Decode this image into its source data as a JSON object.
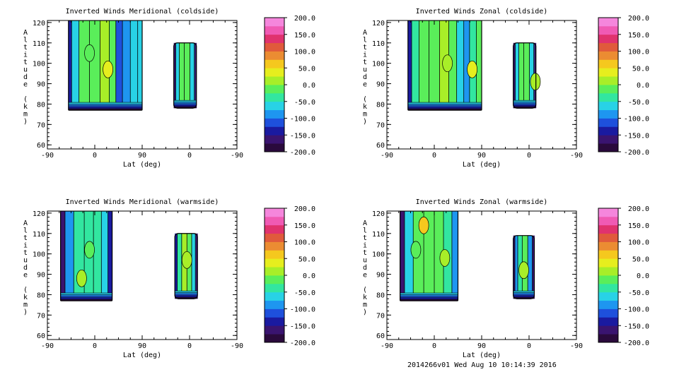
{
  "palette": [
    "#2a0a3c",
    "#3a1470",
    "#1a1aa0",
    "#1e50dc",
    "#1e96f0",
    "#28d2e6",
    "#32e6a0",
    "#5aee5a",
    "#a8ee28",
    "#e6ee1e",
    "#f5c81e",
    "#eb8c32",
    "#e05a3c",
    "#e0326e",
    "#f05ab4",
    "#f586dc"
  ],
  "colorbar_ticks": [
    "200.0",
    "150.0",
    "100.0",
    "50.0",
    "0.0",
    "-50.0",
    "-100.0",
    "-150.0",
    "-200.0"
  ],
  "footer": "2014266v01 Wed Aug 10 10:14:39 2016",
  "chart_data": [
    {
      "type": "heatmap",
      "title": "Inverted Winds Meridional (coldside)",
      "xlabel": "Lat (deg)",
      "ylabel": "Altitude (km)",
      "xticks": [
        "-90",
        "0",
        "90",
        "0",
        "-90"
      ],
      "yticks": [
        "60",
        "70",
        "80",
        "90",
        "100",
        "110",
        "120"
      ],
      "ylim": [
        58,
        121
      ],
      "clim": [
        -200,
        200
      ],
      "blocks": [
        {
          "name": "upleg-panel",
          "x0": -50,
          "x1": 90,
          "ybot": 77,
          "ytop": 121,
          "cols": [
            {
              "x": -48,
              "v": -150
            },
            {
              "x": -40,
              "v": -60
            },
            {
              "x": -20,
              "v": -20
            },
            {
              "x": 0,
              "v": -10
            },
            {
              "x": 20,
              "v": 5
            },
            {
              "x": 35,
              "v": -20
            },
            {
              "x": 45,
              "v": -120
            },
            {
              "x": 60,
              "v": -90
            },
            {
              "x": 75,
              "v": -70
            },
            {
              "x": 88,
              "v": -60
            }
          ],
          "spots": [
            {
              "x": 25,
              "y": 97,
              "v": 30
            },
            {
              "x": -10,
              "y": 105,
              "v": -5
            }
          ]
        },
        {
          "name": "downleg-panel",
          "x0": -13,
          "x1": 30,
          "ybot": 78,
          "ytop": 110,
          "cols": [
            {
              "x": -12,
              "v": -160
            },
            {
              "x": -6,
              "v": -60
            },
            {
              "x": 5,
              "v": -15
            },
            {
              "x": 15,
              "v": -25
            },
            {
              "x": 24,
              "v": -70
            },
            {
              "x": 29,
              "v": -160
            }
          ],
          "spots": []
        }
      ]
    },
    {
      "type": "heatmap",
      "title": "Inverted Winds Zonal (coldside)",
      "xlabel": "Lat (deg)",
      "ylabel": "Altitude (km)",
      "xticks": [
        "-90",
        "0",
        "90",
        "0",
        "-90"
      ],
      "yticks": [
        "60",
        "70",
        "80",
        "90",
        "100",
        "110",
        "120"
      ],
      "ylim": [
        58,
        121
      ],
      "clim": [
        -200,
        200
      ],
      "blocks": [
        {
          "name": "upleg-panel",
          "x0": -50,
          "x1": 90,
          "ybot": 77,
          "ytop": 121,
          "cols": [
            {
              "x": -48,
              "v": -150
            },
            {
              "x": -38,
              "v": -50
            },
            {
              "x": -20,
              "v": -10
            },
            {
              "x": 0,
              "v": -5
            },
            {
              "x": 20,
              "v": 0
            },
            {
              "x": 35,
              "v": -10
            },
            {
              "x": 50,
              "v": -70
            },
            {
              "x": 62,
              "v": -80
            },
            {
              "x": 72,
              "v": -30
            },
            {
              "x": 88,
              "v": -20
            }
          ],
          "spots": [
            {
              "x": 25,
              "y": 100,
              "v": 15
            },
            {
              "x": 72,
              "y": 97,
              "v": 25
            }
          ]
        },
        {
          "name": "downleg-panel",
          "x0": -13,
          "x1": 30,
          "ybot": 78,
          "ytop": 110,
          "cols": [
            {
              "x": -12,
              "v": -160
            },
            {
              "x": -6,
              "v": -60
            },
            {
              "x": 5,
              "v": -20
            },
            {
              "x": 15,
              "v": -10
            },
            {
              "x": 24,
              "v": -60
            },
            {
              "x": 29,
              "v": -160
            }
          ],
          "spots": [
            {
              "x": -12,
              "y": 91,
              "v": 10
            }
          ]
        }
      ]
    },
    {
      "type": "heatmap",
      "title": "Inverted Winds Meridional (warmside)",
      "xlabel": "Lat (deg)",
      "ylabel": "Altitude (km)",
      "xticks": [
        "-90",
        "0",
        "90",
        "0",
        "-90"
      ],
      "yticks": [
        "60",
        "70",
        "80",
        "90",
        "100",
        "110",
        "120"
      ],
      "ylim": [
        58,
        121
      ],
      "clim": [
        -200,
        200
      ],
      "blocks": [
        {
          "name": "upleg-panel",
          "x0": -65,
          "x1": 33,
          "ybot": 77,
          "ytop": 121,
          "cols": [
            {
              "x": -63,
              "v": -160
            },
            {
              "x": -50,
              "v": -90
            },
            {
              "x": -30,
              "v": -40
            },
            {
              "x": -10,
              "v": -35
            },
            {
              "x": 5,
              "v": -40
            },
            {
              "x": 20,
              "v": -70
            },
            {
              "x": 30,
              "v": -130
            }
          ],
          "spots": [
            {
              "x": -10,
              "y": 102,
              "v": -5
            },
            {
              "x": -25,
              "y": 88,
              "v": 15
            }
          ]
        },
        {
          "name": "downleg-panel",
          "x0": -15,
          "x1": 28,
          "ybot": 78,
          "ytop": 110,
          "cols": [
            {
              "x": -14,
              "v": -160
            },
            {
              "x": -8,
              "v": -60
            },
            {
              "x": 0,
              "v": -10
            },
            {
              "x": 10,
              "v": 0
            },
            {
              "x": 20,
              "v": -40
            },
            {
              "x": 27,
              "v": -150
            }
          ],
          "spots": [
            {
              "x": 5,
              "y": 97,
              "v": 20
            }
          ]
        }
      ]
    },
    {
      "type": "heatmap",
      "title": "Inverted Winds Zonal (warmside)",
      "xlabel": "Lat (deg)",
      "ylabel": "Altitude (km)",
      "xticks": [
        "-90",
        "0",
        "90",
        "0",
        "-90"
      ],
      "yticks": [
        "60",
        "70",
        "80",
        "90",
        "100",
        "110",
        "120"
      ],
      "ylim": [
        58,
        121
      ],
      "clim": [
        -200,
        200
      ],
      "blocks": [
        {
          "name": "upleg-panel",
          "x0": -65,
          "x1": 45,
          "ybot": 77,
          "ytop": 121,
          "cols": [
            {
              "x": -63,
              "v": -160
            },
            {
              "x": -50,
              "v": -60
            },
            {
              "x": -30,
              "v": -20
            },
            {
              "x": -10,
              "v": -15
            },
            {
              "x": 10,
              "v": -20
            },
            {
              "x": 25,
              "v": -30
            },
            {
              "x": 42,
              "v": -100
            }
          ],
          "spots": [
            {
              "x": -20,
              "y": 114,
              "v": 60
            },
            {
              "x": 20,
              "y": 98,
              "v": 20
            },
            {
              "x": -35,
              "y": 102,
              "v": -5
            }
          ]
        },
        {
          "name": "downleg-panel",
          "x0": -10,
          "x1": 30,
          "ybot": 78,
          "ytop": 109,
          "cols": [
            {
              "x": -9,
              "v": -160
            },
            {
              "x": -3,
              "v": -80
            },
            {
              "x": 8,
              "v": -10
            },
            {
              "x": 18,
              "v": -30
            },
            {
              "x": 25,
              "v": -80
            },
            {
              "x": 29,
              "v": -160
            }
          ],
          "spots": [
            {
              "x": 10,
              "y": 92,
              "v": 10
            }
          ]
        }
      ]
    }
  ]
}
